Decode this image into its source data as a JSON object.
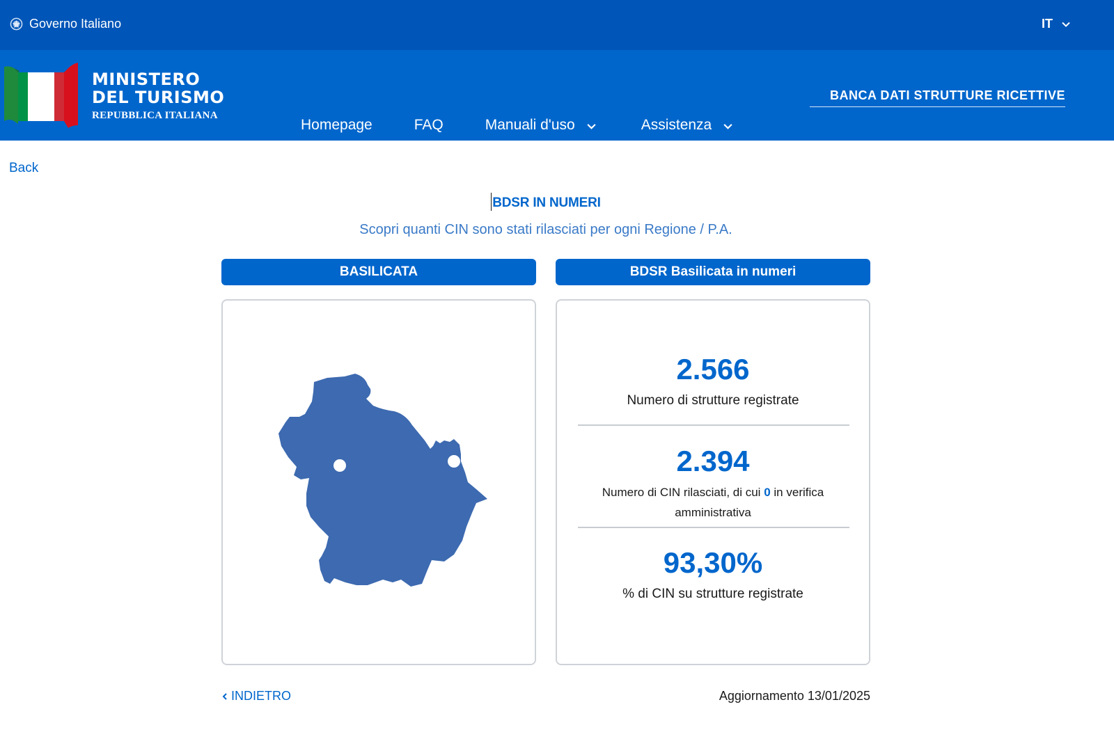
{
  "topbar": {
    "gov_label": "Governo Italiano",
    "lang": "IT"
  },
  "header": {
    "logo_line1": "MINISTERO",
    "logo_line2": "DEL TURISMO",
    "logo_line3": "REPUBBLICA ITALIANA",
    "bdsr_link": "BANCA DATI STRUTTURE RICETTIVE",
    "nav": [
      {
        "label": "Homepage"
      },
      {
        "label": "FAQ"
      },
      {
        "label": "Manuali d'uso"
      },
      {
        "label": "Assistenza"
      }
    ]
  },
  "page": {
    "back": "Back",
    "title": "BDSR IN NUMERI",
    "subtitle": "Scopri quanti CIN sono stati rilasciati per ogni Regione / P.A.",
    "region_pill": "BASILICATA",
    "stats_pill": "BDSR Basilicata in numeri",
    "stats": {
      "registered_value": "2.566",
      "registered_label": "Numero di strutture registrate",
      "cin_value": "2.394",
      "cin_label_pre": "Numero di CIN rilasciati, di cui",
      "cin_pending": "0",
      "cin_label_post": "in verifica",
      "cin_label_line2": "amministrativa",
      "percent_value": "93,30%",
      "percent_label": "% di CIN su strutture registrate"
    },
    "indietro": "INDIETRO",
    "updated": "Aggiornamento 13/01/2025"
  },
  "colors": {
    "topbar": "#0055b8",
    "header": "#0066cc",
    "accent": "#0066cc",
    "map_fill": "#3d6ab0"
  }
}
